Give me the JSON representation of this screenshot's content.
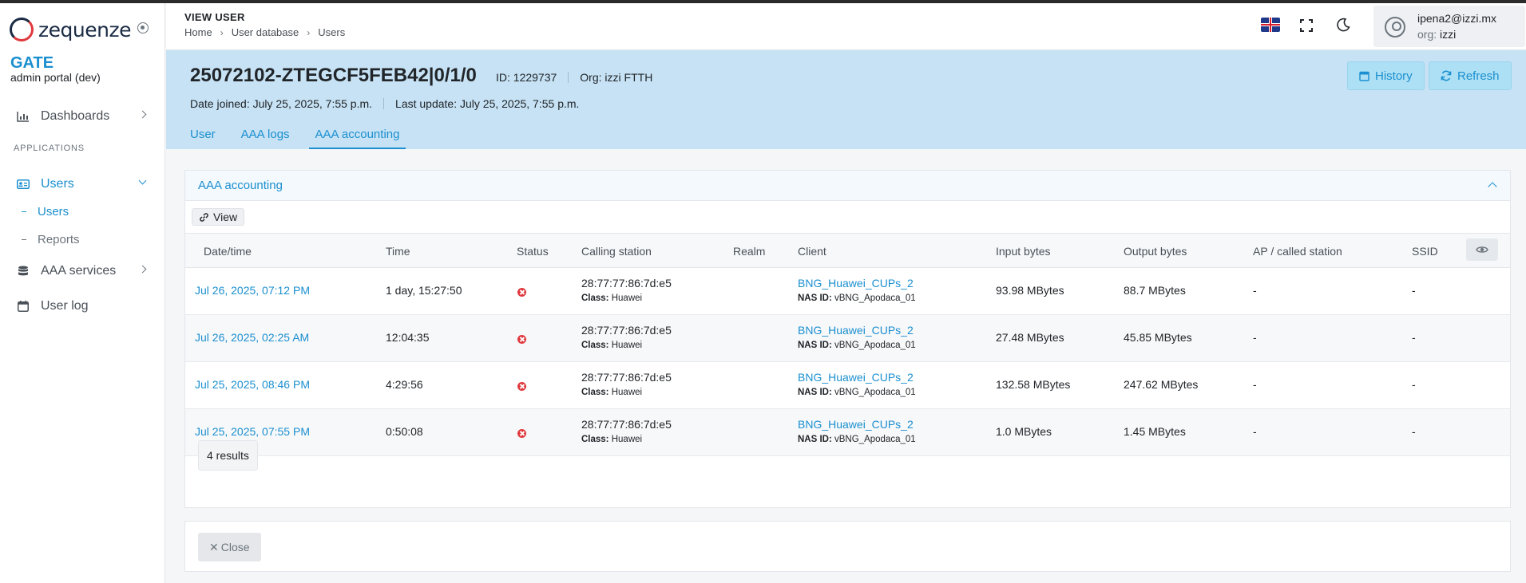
{
  "brand": {
    "logo_text": "zequenze",
    "app_name": "GATE",
    "app_subtitle": "admin portal (dev)"
  },
  "sidebar": {
    "section_label": "APPLICATIONS",
    "items": [
      {
        "label": "Dashboards",
        "icon": "chart-icon"
      },
      {
        "label": "Users",
        "icon": "id-card-icon"
      },
      {
        "label": "AAA services",
        "icon": "database-icon"
      },
      {
        "label": "User log",
        "icon": "calendar-icon"
      }
    ],
    "sub_items": [
      {
        "label": "Users"
      },
      {
        "label": "Reports"
      }
    ]
  },
  "header": {
    "title": "VIEW USER",
    "breadcrumb": [
      "Home",
      "User database",
      "Users"
    ],
    "user_email": "ipena2@izzi.mx",
    "user_org_label": "org:",
    "user_org": "izzi"
  },
  "user": {
    "name": "25072102-ZTEGCF5FEB42|0/1/0",
    "id_label": "ID:",
    "id": "1229737",
    "org_label": "Org:",
    "org": "izzi FTTH",
    "date_joined_label": "Date joined:",
    "date_joined": "July 25, 2025, 7:55 p.m.",
    "last_update_label": "Last update:",
    "last_update": "July 25, 2025, 7:55 p.m.",
    "history_label": "History",
    "refresh_label": "Refresh"
  },
  "tabs": [
    {
      "label": "User"
    },
    {
      "label": "AAA logs"
    },
    {
      "label": "AAA accounting"
    }
  ],
  "card": {
    "title": "AAA accounting",
    "view_label": "View",
    "columns": [
      "Date/time",
      "Time",
      "Status",
      "Calling station",
      "Realm",
      "Client",
      "Input bytes",
      "Output bytes",
      "AP / called station",
      "SSID"
    ],
    "class_label": "Class:",
    "nas_label": "NAS ID:",
    "rows": [
      {
        "datetime": "Jul 26, 2025, 07:12 PM",
        "time": "1 day, 15:27:50",
        "calling": "28:77:77:86:7d:e5",
        "class": "Huawei",
        "client": "BNG_Huawei_CUPs_2",
        "nas": "vBNG_Apodaca_01",
        "input": "93.98 MBytes",
        "output": "88.7 MBytes",
        "ap": "-",
        "ssid": "-"
      },
      {
        "datetime": "Jul 26, 2025, 02:25 AM",
        "time": "12:04:35",
        "calling": "28:77:77:86:7d:e5",
        "class": "Huawei",
        "client": "BNG_Huawei_CUPs_2",
        "nas": "vBNG_Apodaca_01",
        "input": "27.48 MBytes",
        "output": "45.85 MBytes",
        "ap": "-",
        "ssid": "-"
      },
      {
        "datetime": "Jul 25, 2025, 08:46 PM",
        "time": "4:29:56",
        "calling": "28:77:77:86:7d:e5",
        "class": "Huawei",
        "client": "BNG_Huawei_CUPs_2",
        "nas": "vBNG_Apodaca_01",
        "input": "132.58 MBytes",
        "output": "247.62 MBytes",
        "ap": "-",
        "ssid": "-"
      },
      {
        "datetime": "Jul 25, 2025, 07:55 PM",
        "time": "0:50:08",
        "calling": "28:77:77:86:7d:e5",
        "class": "Huawei",
        "client": "BNG_Huawei_CUPs_2",
        "nas": "vBNG_Apodaca_01",
        "input": "1.0 MBytes",
        "output": "1.45 MBytes",
        "ap": "-",
        "ssid": "-"
      }
    ],
    "results_label": "4 results"
  },
  "close_label": "Close",
  "colors": {
    "accent": "#1b8fcf",
    "band": "#c6e2f4",
    "error": "#e0393e"
  }
}
